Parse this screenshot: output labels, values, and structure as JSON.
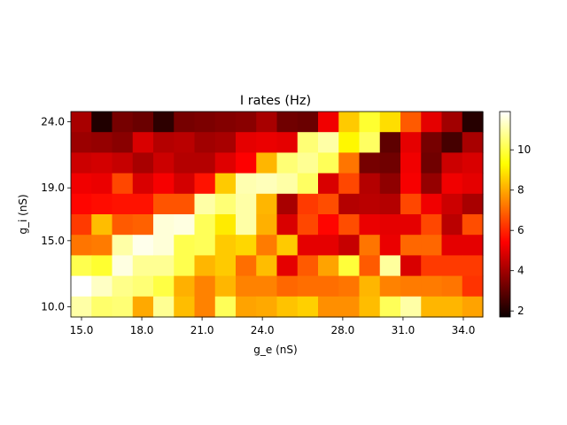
{
  "chart_data": {
    "type": "heatmap",
    "title": "I rates (Hz)",
    "xlabel": "g_e (nS)",
    "ylabel": "g_i (nS)",
    "x_ticks": [
      "15.0",
      "18.0",
      "21.0",
      "24.0",
      "28.0",
      "31.0",
      "34.0"
    ],
    "y_ticks": [
      "10.0",
      "15.0",
      "19.0",
      "24.0"
    ],
    "colorbar_ticks": [
      "2",
      "4",
      "6",
      "8",
      "10"
    ],
    "colormap": "hot",
    "vmin": 1.7,
    "vmax": 11.9,
    "x_range": [
      15.0,
      35.5
    ],
    "y_range": [
      10.0,
      24.0
    ],
    "rows_top_to_bottom": [
      [
        4.0,
        1.8,
        3.2,
        3.0,
        2.0,
        3.2,
        3.3,
        3.4,
        3.5,
        4.0,
        3.1,
        3.0,
        5.2,
        8.5,
        9.8,
        8.8,
        6.8,
        5.0,
        3.9,
        1.9
      ],
      [
        3.8,
        3.7,
        3.5,
        4.8,
        4.2,
        4.3,
        3.9,
        4.0,
        5.0,
        5.1,
        5.0,
        10.5,
        11.0,
        9.2,
        10.3,
        2.8,
        5.0,
        3.2,
        2.4,
        4.0
      ],
      [
        4.6,
        4.7,
        4.5,
        4.0,
        4.6,
        4.2,
        4.2,
        4.9,
        5.4,
        8.2,
        10.5,
        10.8,
        10.2,
        7.2,
        3.2,
        3.1,
        5.2,
        3.1,
        4.6,
        4.8
      ],
      [
        5.2,
        5.1,
        6.5,
        4.8,
        5.3,
        4.7,
        5.7,
        8.5,
        11.1,
        11.2,
        11.0,
        10.3,
        4.8,
        6.5,
        4.2,
        3.6,
        5.3,
        3.7,
        5.2,
        5.0
      ],
      [
        5.5,
        5.6,
        5.7,
        5.7,
        6.7,
        6.7,
        11.0,
        10.5,
        11.0,
        8.2,
        4.0,
        6.3,
        6.6,
        4.2,
        4.3,
        4.2,
        6.5,
        5.2,
        4.6,
        4.0
      ],
      [
        6.3,
        8.3,
        6.8,
        6.9,
        11.5,
        11.6,
        10.2,
        9.0,
        11.0,
        8.1,
        4.8,
        6.5,
        5.5,
        6.6,
        5.1,
        5.0,
        5.0,
        6.5,
        4.3,
        6.6
      ],
      [
        7.2,
        7.3,
        11.0,
        11.7,
        11.5,
        10.1,
        10.2,
        8.5,
        8.7,
        7.3,
        8.5,
        5.0,
        5.0,
        4.5,
        7.2,
        5.1,
        7.0,
        7.0,
        5.0,
        5.0
      ],
      [
        10.1,
        9.8,
        11.6,
        10.8,
        10.8,
        10.1,
        8.2,
        8.5,
        7.1,
        8.3,
        5.0,
        6.8,
        7.9,
        9.9,
        6.8,
        10.9,
        4.8,
        6.3,
        6.3,
        6.3
      ],
      [
        11.9,
        11.3,
        10.7,
        10.5,
        10.0,
        8.1,
        7.4,
        8.2,
        7.4,
        7.4,
        7.0,
        7.1,
        7.1,
        7.2,
        8.2,
        7.4,
        7.3,
        7.3,
        7.2,
        6.2
      ],
      [
        11.0,
        10.4,
        10.5,
        8.0,
        10.8,
        8.3,
        7.4,
        10.2,
        7.9,
        8.0,
        8.4,
        8.6,
        7.6,
        7.6,
        8.3,
        10.2,
        11.0,
        8.2,
        8.2,
        7.9
      ]
    ]
  }
}
